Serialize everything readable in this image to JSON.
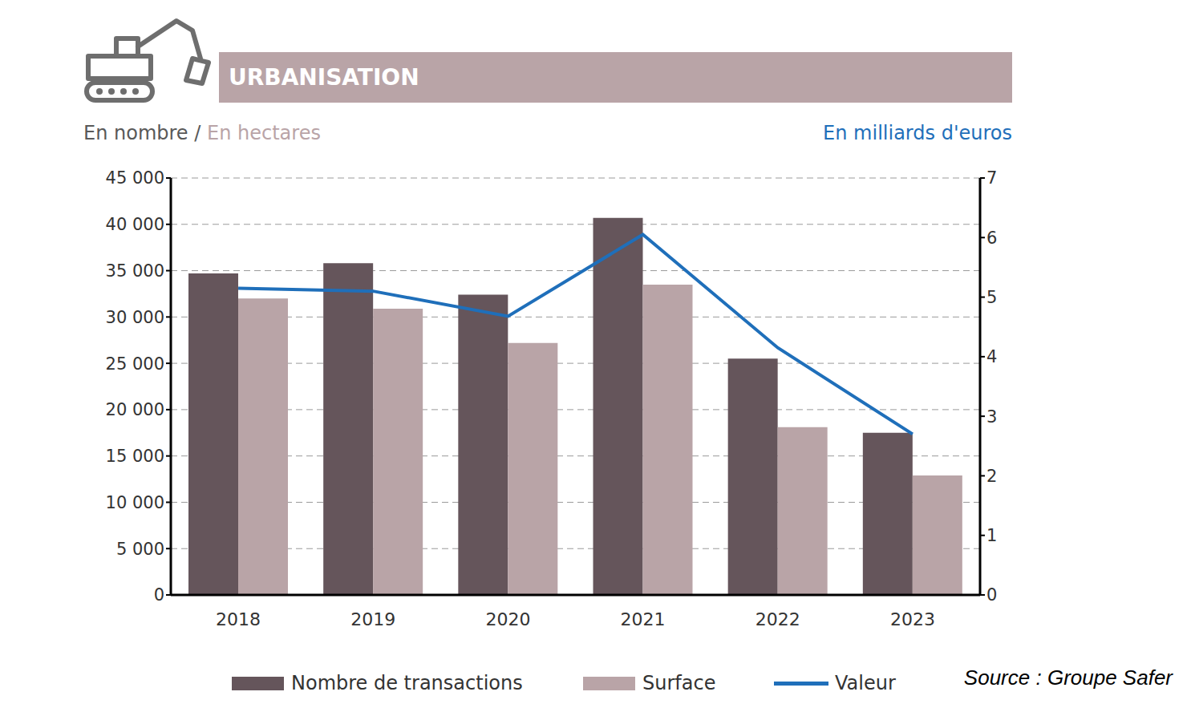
{
  "chart_data": {
    "type": "bar",
    "title": "URBANISATION",
    "ylabel": [
      "En nombre",
      "/",
      "En hectares"
    ],
    "y2label": "En milliards d'euros",
    "source": "Source : Groupe Safer",
    "categories": [
      "2018",
      "2019",
      "2020",
      "2021",
      "2022",
      "2023"
    ],
    "series": [
      {
        "name": "Nombre de transactions",
        "color": "#65555b",
        "values": [
          34700,
          35800,
          32400,
          40700,
          25500,
          17500
        ]
      },
      {
        "name": "Surface",
        "color": "#b9a4a7",
        "values": [
          32000,
          30900,
          27200,
          33500,
          18100,
          12900
        ]
      },
      {
        "name": "Valeur",
        "color": "#1f6fba",
        "type": "line",
        "axis": "y2",
        "values": [
          5.15,
          5.1,
          4.68,
          6.05,
          4.15,
          2.7
        ]
      }
    ],
    "ylim": [
      0,
      45000
    ],
    "yticks": [
      0,
      {
        "value": 5000,
        "label": "5 000"
      },
      {
        "value": 10000,
        "label": "10 000"
      },
      {
        "value": 15000,
        "label": "15 000"
      },
      {
        "value": 20000,
        "label": "20 000"
      },
      {
        "value": 25000,
        "label": "25 000"
      },
      {
        "value": 30000,
        "label": "30 000"
      },
      {
        "value": 35000,
        "label": "35 000"
      },
      {
        "value": 40000,
        "label": "40 000"
      },
      {
        "value": 45000,
        "label": "45 000"
      }
    ],
    "y2lim": [
      0,
      7
    ],
    "y2ticks": [
      0,
      1,
      2,
      3,
      4,
      5,
      6,
      7
    ],
    "grid": true,
    "legend": "bottom"
  }
}
